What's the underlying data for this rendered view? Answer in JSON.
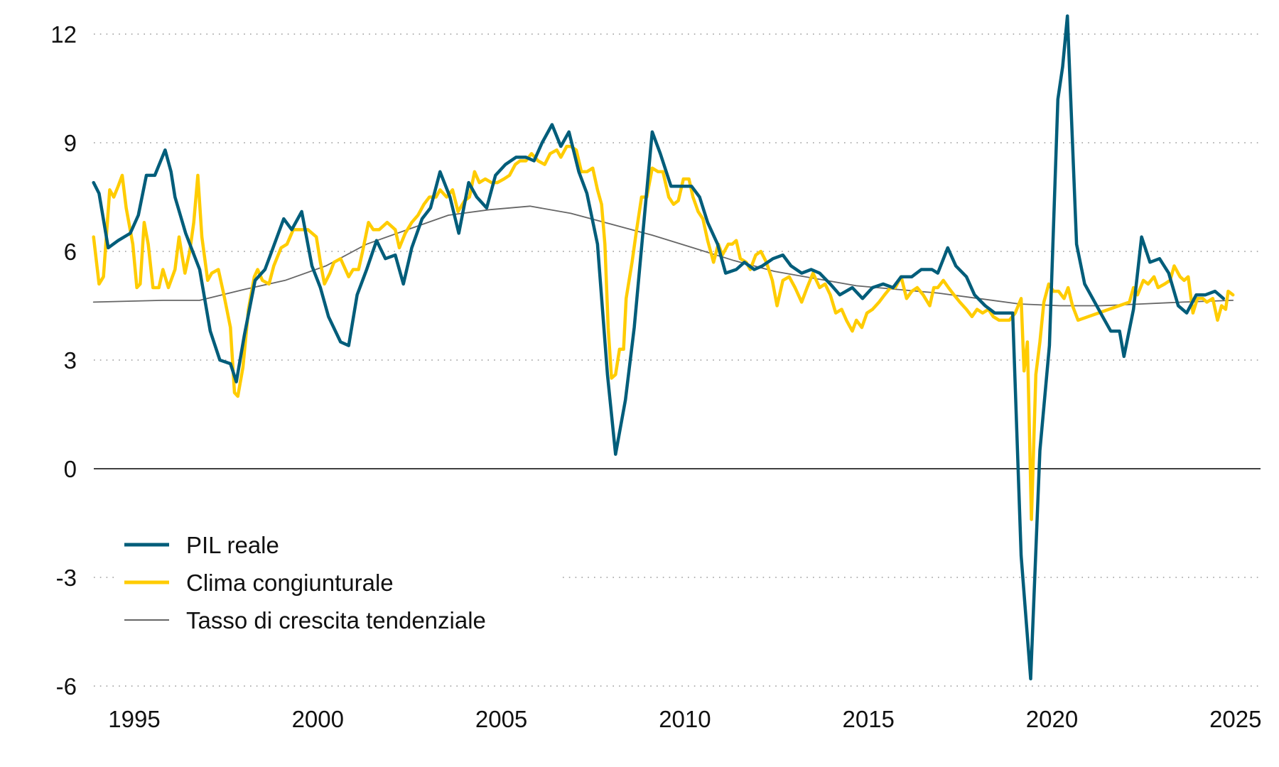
{
  "chart_data": {
    "type": "line",
    "title": "",
    "xlabel": "",
    "ylabel": "",
    "xlim": [
      1993.9,
      2025.1
    ],
    "ylim": [
      -6,
      12.5
    ],
    "yticks": [
      12,
      9,
      6,
      3,
      0,
      -3,
      -6
    ],
    "ytick_labels": [
      "12",
      "9",
      "6",
      "3",
      "0",
      "-3",
      "-6"
    ],
    "xticks": [
      1995,
      2000,
      2005,
      2010,
      2015,
      2020,
      2025
    ],
    "xtick_labels": [
      "1995",
      "2000",
      "2005",
      "2010",
      "2015",
      "2020",
      "2025"
    ],
    "grid": "horizontal dotted",
    "zero_line": true,
    "legend_position": "bottom-left",
    "series": [
      {
        "name": "PIL reale",
        "color": "#005d7a",
        "x": [
          1993.89,
          1994.04,
          1994.29,
          1994.56,
          1994.89,
          1995.11,
          1995.33,
          1995.56,
          1995.84,
          1996.0,
          1996.11,
          1996.4,
          1996.78,
          1997.07,
          1997.33,
          1997.62,
          1997.78,
          1998.0,
          1998.29,
          1998.56,
          1998.78,
          1999.07,
          1999.29,
          1999.56,
          1999.84,
          2000.07,
          2000.29,
          2000.62,
          2000.84,
          2001.07,
          2001.33,
          2001.6,
          2001.84,
          2002.11,
          2002.33,
          2002.56,
          2002.84,
          2003.07,
          2003.33,
          2003.6,
          2003.84,
          2004.11,
          2004.33,
          2004.6,
          2004.84,
          2005.11,
          2005.4,
          2005.67,
          2005.89,
          2006.11,
          2006.38,
          2006.62,
          2006.84,
          2007.11,
          2007.33,
          2007.62,
          2007.89,
          2008.11,
          2008.38,
          2008.62,
          2008.89,
          2009.11,
          2009.33,
          2009.62,
          2009.89,
          2010.18,
          2010.4,
          2010.62,
          2010.89,
          2011.11,
          2011.4,
          2011.62,
          2011.89,
          2012.11,
          2012.4,
          2012.67,
          2012.89,
          2013.18,
          2013.44,
          2013.67,
          2013.96,
          2014.22,
          2014.56,
          2014.84,
          2015.11,
          2015.4,
          2015.67,
          2015.89,
          2016.18,
          2016.44,
          2016.73,
          2016.89,
          2017.16,
          2017.38,
          2017.67,
          2017.89,
          2018.18,
          2018.44,
          2018.67,
          2018.93,
          2019.16,
          2019.42,
          2019.67,
          2019.93,
          2020.16,
          2020.29,
          2020.42,
          2020.67,
          2020.89,
          2021.11,
          2021.38,
          2021.6,
          2021.84,
          2021.96,
          2022.22,
          2022.44,
          2022.67,
          2022.93,
          2023.18,
          2023.44,
          2023.67,
          2023.93,
          2024.18,
          2024.44,
          2024.67
        ],
        "y": [
          7.9,
          7.6,
          6.1,
          6.3,
          6.5,
          7.0,
          8.1,
          8.1,
          8.8,
          8.2,
          7.5,
          6.5,
          5.5,
          3.8,
          3.0,
          2.9,
          2.4,
          3.7,
          5.2,
          5.5,
          6.1,
          6.9,
          6.6,
          7.1,
          5.6,
          5.0,
          4.2,
          3.5,
          3.4,
          4.8,
          5.5,
          6.3,
          5.8,
          5.9,
          5.1,
          6.1,
          6.9,
          7.2,
          8.2,
          7.5,
          6.5,
          7.9,
          7.5,
          7.2,
          8.1,
          8.4,
          8.6,
          8.6,
          8.5,
          9.0,
          9.5,
          8.9,
          9.3,
          8.2,
          7.6,
          6.2,
          2.6,
          0.4,
          1.9,
          3.9,
          6.9,
          9.3,
          8.7,
          7.8,
          7.8,
          7.8,
          7.5,
          6.8,
          6.2,
          5.4,
          5.5,
          5.7,
          5.5,
          5.6,
          5.8,
          5.9,
          5.6,
          5.4,
          5.5,
          5.4,
          5.1,
          4.8,
          5.0,
          4.7,
          5.0,
          5.1,
          5.0,
          5.3,
          5.3,
          5.5,
          5.5,
          5.4,
          6.1,
          5.6,
          5.3,
          4.8,
          4.5,
          4.3,
          4.3,
          4.3,
          -2.4,
          -5.8,
          0.5,
          3.4,
          10.2,
          11.1,
          12.5,
          6.2,
          5.1,
          4.7,
          4.2,
          3.8,
          3.8,
          3.1,
          4.4,
          6.4,
          5.7,
          5.8,
          5.4,
          4.5,
          4.3,
          4.8,
          4.8,
          4.9,
          4.7
        ]
      },
      {
        "name": "Clima congiunturale",
        "color": "#ffcc00",
        "x": [
          1993.89,
          1994.04,
          1994.16,
          1994.33,
          1994.44,
          1994.56,
          1994.67,
          1994.78,
          1994.96,
          1995.07,
          1995.16,
          1995.27,
          1995.38,
          1995.51,
          1995.67,
          1995.78,
          1995.93,
          1996.11,
          1996.22,
          1996.38,
          1996.51,
          1996.62,
          1996.73,
          1996.84,
          1997.0,
          1997.11,
          1997.29,
          1997.44,
          1997.62,
          1997.73,
          1997.82,
          1997.96,
          1998.11,
          1998.27,
          1998.36,
          1998.49,
          1998.67,
          1998.8,
          1999.0,
          1999.16,
          1999.33,
          1999.51,
          1999.73,
          1999.96,
          2000.07,
          2000.18,
          2000.33,
          2000.44,
          2000.62,
          2000.84,
          2000.96,
          2001.11,
          2001.22,
          2001.38,
          2001.51,
          2001.67,
          2001.89,
          2002.11,
          2002.22,
          2002.38,
          2002.56,
          2002.73,
          2002.89,
          2003.04,
          2003.22,
          2003.33,
          2003.51,
          2003.67,
          2003.82,
          2004.0,
          2004.13,
          2004.27,
          2004.4,
          2004.56,
          2004.73,
          2004.89,
          2005.07,
          2005.22,
          2005.38,
          2005.51,
          2005.67,
          2005.82,
          2006.0,
          2006.18,
          2006.33,
          2006.51,
          2006.62,
          2006.78,
          2006.89,
          2007.04,
          2007.18,
          2007.33,
          2007.49,
          2007.62,
          2007.73,
          2007.82,
          2007.91,
          2008.0,
          2008.11,
          2008.22,
          2008.33,
          2008.4,
          2008.56,
          2008.67,
          2008.82,
          2008.96,
          2009.11,
          2009.27,
          2009.4,
          2009.56,
          2009.69,
          2009.82,
          2009.96,
          2010.11,
          2010.22,
          2010.36,
          2010.49,
          2010.62,
          2010.78,
          2010.91,
          2011.02,
          2011.18,
          2011.29,
          2011.4,
          2011.51,
          2011.67,
          2011.78,
          2011.93,
          2012.07,
          2012.22,
          2012.38,
          2012.51,
          2012.67,
          2012.84,
          2013.0,
          2013.18,
          2013.33,
          2013.49,
          2013.67,
          2013.82,
          2013.96,
          2014.11,
          2014.27,
          2014.4,
          2014.56,
          2014.67,
          2014.82,
          2014.96,
          2015.11,
          2015.29,
          2015.44,
          2015.6,
          2015.73,
          2015.89,
          2016.04,
          2016.18,
          2016.33,
          2016.49,
          2016.67,
          2016.78,
          2016.89,
          2017.04,
          2017.18,
          2017.33,
          2017.49,
          2017.67,
          2017.82,
          2017.96,
          2018.11,
          2018.27,
          2018.4,
          2018.56,
          2018.71,
          2018.84,
          2019.0,
          2019.16,
          2019.24,
          2019.33,
          2019.44,
          2019.56,
          2019.67,
          2019.78,
          2019.91,
          2020.04,
          2020.18,
          2020.33,
          2020.44,
          2020.56,
          2020.71,
          2022.11,
          2022.22,
          2022.33,
          2022.49,
          2022.62,
          2022.78,
          2022.89,
          2023.07,
          2023.22,
          2023.33,
          2023.49,
          2023.6,
          2023.71,
          2023.84,
          2023.96,
          2024.11,
          2024.22,
          2024.38,
          2024.51,
          2024.62,
          2024.73,
          2024.8,
          2024.93
        ],
        "y": [
          6.4,
          5.1,
          5.3,
          7.7,
          7.5,
          7.8,
          8.1,
          7.2,
          6.2,
          5.0,
          5.1,
          6.8,
          6.2,
          5.0,
          5.0,
          5.5,
          5.0,
          5.5,
          6.4,
          5.4,
          6.0,
          6.8,
          8.1,
          6.4,
          5.2,
          5.4,
          5.5,
          4.8,
          3.9,
          2.1,
          2.0,
          2.8,
          4.4,
          5.3,
          5.5,
          5.2,
          5.1,
          5.6,
          6.1,
          6.2,
          6.6,
          6.6,
          6.6,
          6.4,
          5.7,
          5.1,
          5.4,
          5.7,
          5.8,
          5.3,
          5.5,
          5.5,
          6.0,
          6.8,
          6.6,
          6.6,
          6.8,
          6.6,
          6.1,
          6.5,
          6.8,
          7.0,
          7.3,
          7.5,
          7.5,
          7.7,
          7.5,
          7.7,
          7.1,
          7.4,
          7.5,
          8.2,
          7.9,
          8.0,
          7.9,
          7.9,
          8.0,
          8.1,
          8.4,
          8.5,
          8.5,
          8.7,
          8.5,
          8.4,
          8.7,
          8.8,
          8.6,
          8.9,
          8.9,
          8.8,
          8.2,
          8.2,
          8.3,
          7.7,
          7.3,
          6.2,
          3.9,
          2.5,
          2.6,
          3.3,
          3.3,
          4.7,
          5.7,
          6.5,
          7.5,
          7.5,
          8.3,
          8.2,
          8.2,
          7.5,
          7.3,
          7.4,
          8.0,
          8.0,
          7.5,
          7.1,
          6.9,
          6.3,
          5.7,
          6.2,
          5.9,
          6.2,
          6.2,
          6.3,
          5.8,
          5.7,
          5.5,
          5.9,
          6.0,
          5.7,
          5.2,
          4.5,
          5.2,
          5.3,
          5.0,
          4.6,
          5.0,
          5.4,
          5.0,
          5.1,
          4.8,
          4.3,
          4.4,
          4.1,
          3.8,
          4.1,
          3.9,
          4.3,
          4.4,
          4.6,
          4.8,
          5.0,
          5.0,
          5.3,
          4.7,
          4.9,
          5.0,
          4.8,
          4.5,
          5.0,
          5.0,
          5.2,
          5.0,
          4.8,
          4.6,
          4.4,
          4.2,
          4.4,
          4.3,
          4.4,
          4.2,
          4.1,
          4.1,
          4.1,
          4.3,
          4.7,
          2.7,
          3.5,
          -1.4,
          2.6,
          3.5,
          4.6,
          5.1,
          4.9,
          4.9,
          4.7,
          5.0,
          4.5,
          4.1,
          4.6,
          5.0,
          4.8,
          5.2,
          5.1,
          5.3,
          5.0,
          5.1,
          5.2,
          5.6,
          5.3,
          5.2,
          5.3,
          4.3,
          4.7,
          4.7,
          4.6,
          4.7,
          4.1,
          4.5,
          4.4,
          4.9,
          4.8
        ]
      },
      {
        "name": "Tasso di crescita tendenziale",
        "color": "#666666",
        "x": [
          1993.89,
          1995.78,
          1996.78,
          1998.0,
          1999.11,
          2000.22,
          2001.33,
          2002.44,
          2003.56,
          2004.67,
          2005.78,
          2006.89,
          2008.0,
          2009.11,
          2010.22,
          2011.33,
          2012.44,
          2013.56,
          2014.67,
          2015.78,
          2016.89,
          2018.0,
          2019.11,
          2020.22,
          2021.33,
          2022.44,
          2023.56,
          2024.93
        ],
        "y": [
          4.6,
          4.65,
          4.65,
          4.95,
          5.2,
          5.6,
          6.2,
          6.6,
          7.0,
          7.15,
          7.25,
          7.05,
          6.75,
          6.45,
          6.1,
          5.75,
          5.45,
          5.25,
          5.05,
          4.95,
          4.85,
          4.7,
          4.55,
          4.5,
          4.5,
          4.55,
          4.6,
          4.65
        ]
      }
    ]
  }
}
